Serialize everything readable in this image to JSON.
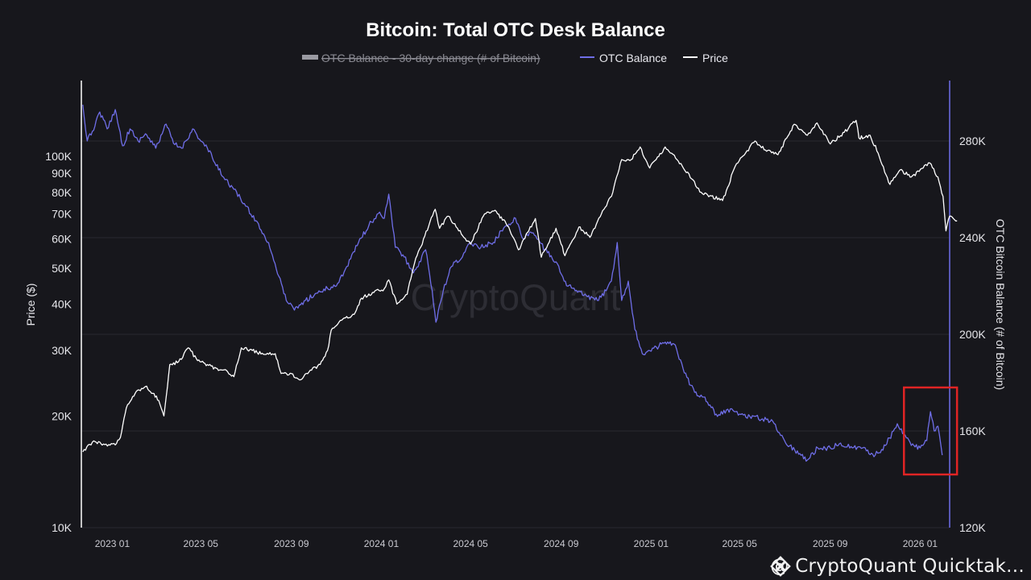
{
  "colors": {
    "background": "#17171c",
    "otc_balance": "#6f6ee8",
    "price": "#ffffff",
    "grid": "#2a2a31",
    "highlight_box": "#e02424",
    "legend_disabled": "#8a8a92"
  },
  "footer": {
    "logo_icon": "binance-square-icon",
    "text": "@ CryptoQuant Quicktak..."
  },
  "chart_data": {
    "type": "line",
    "title": "Bitcoin: Total OTC Desk Balance",
    "watermark": "CryptoQuant",
    "legend": [
      {
        "name": "OTC Balance - 30-day change (# of Bitcoin)",
        "state": "disabled"
      },
      {
        "name": "OTC Balance",
        "state": "enabled"
      },
      {
        "name": "Price",
        "state": "enabled"
      }
    ],
    "legend_position": "top-center",
    "grid": true,
    "x_axis": {
      "type": "date",
      "range": [
        "2022-11-20",
        "2026-02-10"
      ],
      "ticks": [
        "2023 01",
        "2023 05",
        "2023 09",
        "2024 01",
        "2024 05",
        "2024 09",
        "2025 01",
        "2025 05",
        "2025 09",
        "2026 01"
      ]
    },
    "y_left": {
      "label": "Price ($)",
      "scale": "log",
      "range": [
        10000,
        160000
      ],
      "ticks": [
        10000,
        20000,
        30000,
        40000,
        50000,
        60000,
        70000,
        80000,
        90000,
        100000
      ],
      "tick_labels": [
        "10K",
        "20K",
        "30K",
        "40K",
        "50K",
        "60K",
        "70K",
        "80K",
        "90K",
        "100K"
      ]
    },
    "y_right": {
      "label": "OTC Bitcoin Balance (# of Bitcoin)",
      "scale": "linear",
      "range": [
        120000,
        305000
      ],
      "ticks": [
        120000,
        160000,
        200000,
        240000,
        280000
      ],
      "tick_labels": [
        "120K",
        "160K",
        "200K",
        "240K",
        "280K"
      ]
    },
    "annotations": [
      {
        "type": "box",
        "color": "#e02424",
        "x_range": [
          "2025-12-10",
          "2026-02-20"
        ],
        "y_right_range": [
          142000,
          178000
        ]
      }
    ],
    "series": [
      {
        "name": "OTC Balance",
        "axis": "right",
        "points": [
          [
            "2022-11-22",
            295000
          ],
          [
            "2022-11-28",
            280000
          ],
          [
            "2022-12-05",
            284000
          ],
          [
            "2022-12-15",
            292000
          ],
          [
            "2022-12-25",
            285000
          ],
          [
            "2023-01-05",
            293000
          ],
          [
            "2023-01-15",
            278000
          ],
          [
            "2023-01-25",
            285000
          ],
          [
            "2023-02-05",
            280000
          ],
          [
            "2023-02-15",
            283000
          ],
          [
            "2023-03-01",
            277000
          ],
          [
            "2023-03-15",
            287000
          ],
          [
            "2023-03-25",
            279000
          ],
          [
            "2023-04-05",
            277000
          ],
          [
            "2023-04-20",
            285000
          ],
          [
            "2023-05-01",
            280000
          ],
          [
            "2023-05-10",
            277000
          ],
          [
            "2023-05-20",
            271000
          ],
          [
            "2023-06-01",
            265000
          ],
          [
            "2023-06-15",
            260000
          ],
          [
            "2023-07-01",
            253000
          ],
          [
            "2023-07-15",
            247000
          ],
          [
            "2023-08-01",
            238000
          ],
          [
            "2023-08-15",
            224000
          ],
          [
            "2023-08-25",
            214000
          ],
          [
            "2023-09-05",
            210000
          ],
          [
            "2023-09-20",
            214000
          ],
          [
            "2023-10-05",
            217000
          ],
          [
            "2023-10-20",
            219000
          ],
          [
            "2023-11-01",
            220000
          ],
          [
            "2023-11-15",
            228000
          ],
          [
            "2023-12-01",
            238000
          ],
          [
            "2023-12-15",
            245000
          ],
          [
            "2023-12-28",
            250000
          ],
          [
            "2024-01-05",
            248000
          ],
          [
            "2024-01-11",
            258000
          ],
          [
            "2024-01-20",
            236000
          ],
          [
            "2024-02-01",
            232000
          ],
          [
            "2024-02-12",
            226000
          ],
          [
            "2024-02-20",
            228000
          ],
          [
            "2024-03-01",
            235000
          ],
          [
            "2024-03-10",
            218000
          ],
          [
            "2024-03-15",
            205000
          ],
          [
            "2024-03-25",
            218000
          ],
          [
            "2024-04-05",
            228000
          ],
          [
            "2024-04-20",
            232000
          ],
          [
            "2024-05-01",
            238000
          ],
          [
            "2024-05-15",
            236000
          ],
          [
            "2024-06-01",
            238000
          ],
          [
            "2024-06-15",
            244000
          ],
          [
            "2024-07-01",
            248000
          ],
          [
            "2024-07-10",
            240000
          ],
          [
            "2024-07-25",
            242000
          ],
          [
            "2024-08-10",
            235000
          ],
          [
            "2024-08-25",
            230000
          ],
          [
            "2024-09-05",
            222000
          ],
          [
            "2024-09-20",
            218000
          ],
          [
            "2024-10-05",
            216000
          ],
          [
            "2024-10-20",
            214000
          ],
          [
            "2024-11-01",
            218000
          ],
          [
            "2024-11-08",
            222000
          ],
          [
            "2024-11-16",
            238000
          ],
          [
            "2024-11-22",
            214000
          ],
          [
            "2024-12-01",
            222000
          ],
          [
            "2024-12-10",
            202000
          ],
          [
            "2024-12-20",
            192000
          ],
          [
            "2025-01-01",
            193000
          ],
          [
            "2025-01-15",
            196000
          ],
          [
            "2025-02-01",
            196000
          ],
          [
            "2025-02-15",
            184000
          ],
          [
            "2025-03-01",
            176000
          ],
          [
            "2025-03-15",
            174000
          ],
          [
            "2025-04-01",
            166000
          ],
          [
            "2025-04-15",
            169000
          ],
          [
            "2025-05-01",
            167000
          ],
          [
            "2025-05-15",
            166000
          ],
          [
            "2025-06-01",
            165000
          ],
          [
            "2025-06-15",
            164000
          ],
          [
            "2025-07-01",
            156000
          ],
          [
            "2025-07-15",
            152000
          ],
          [
            "2025-08-01",
            148000
          ],
          [
            "2025-08-15",
            153000
          ],
          [
            "2025-09-01",
            153000
          ],
          [
            "2025-09-15",
            155000
          ],
          [
            "2025-10-01",
            153000
          ],
          [
            "2025-10-15",
            153000
          ],
          [
            "2025-11-01",
            150000
          ],
          [
            "2025-11-15",
            154000
          ],
          [
            "2025-12-01",
            163000
          ],
          [
            "2025-12-10",
            159000
          ],
          [
            "2025-12-20",
            154000
          ],
          [
            "2026-01-01",
            153000
          ],
          [
            "2026-01-10",
            156000
          ],
          [
            "2026-01-15",
            168000
          ],
          [
            "2026-01-20",
            160000
          ],
          [
            "2026-01-25",
            162000
          ],
          [
            "2026-01-31",
            150000
          ]
        ]
      },
      {
        "name": "Price",
        "axis": "left",
        "points": [
          [
            "2022-11-22",
            16000
          ],
          [
            "2022-12-05",
            17000
          ],
          [
            "2022-12-20",
            16800
          ],
          [
            "2023-01-05",
            16700
          ],
          [
            "2023-01-12",
            17500
          ],
          [
            "2023-01-20",
            21000
          ],
          [
            "2023-02-01",
            23000
          ],
          [
            "2023-02-15",
            24000
          ],
          [
            "2023-02-25",
            23000
          ],
          [
            "2023-03-05",
            22000
          ],
          [
            "2023-03-12",
            20000
          ],
          [
            "2023-03-20",
            27500
          ],
          [
            "2023-04-01",
            28000
          ],
          [
            "2023-04-14",
            30500
          ],
          [
            "2023-04-25",
            28500
          ],
          [
            "2023-05-10",
            27500
          ],
          [
            "2023-05-25",
            26500
          ],
          [
            "2023-06-05",
            26500
          ],
          [
            "2023-06-15",
            25500
          ],
          [
            "2023-06-25",
            30500
          ],
          [
            "2023-07-10",
            30000
          ],
          [
            "2023-07-25",
            29300
          ],
          [
            "2023-08-10",
            29400
          ],
          [
            "2023-08-18",
            26000
          ],
          [
            "2023-09-01",
            26000
          ],
          [
            "2023-09-12",
            25000
          ],
          [
            "2023-09-25",
            26300
          ],
          [
            "2023-10-10",
            27500
          ],
          [
            "2023-10-20",
            30000
          ],
          [
            "2023-10-25",
            34000
          ],
          [
            "2023-11-10",
            36500
          ],
          [
            "2023-11-25",
            37500
          ],
          [
            "2023-12-05",
            41500
          ],
          [
            "2023-12-20",
            43000
          ],
          [
            "2024-01-05",
            44000
          ],
          [
            "2024-01-11",
            46500
          ],
          [
            "2024-01-22",
            40000
          ],
          [
            "2024-02-05",
            42500
          ],
          [
            "2024-02-15",
            51500
          ],
          [
            "2024-02-29",
            61000
          ],
          [
            "2024-03-14",
            72000
          ],
          [
            "2024-03-20",
            64000
          ],
          [
            "2024-04-01",
            69000
          ],
          [
            "2024-04-15",
            63000
          ],
          [
            "2024-05-01",
            58000
          ],
          [
            "2024-05-20",
            70000
          ],
          [
            "2024-06-05",
            71000
          ],
          [
            "2024-06-20",
            65000
          ],
          [
            "2024-07-05",
            56000
          ],
          [
            "2024-07-28",
            68000
          ],
          [
            "2024-08-05",
            53500
          ],
          [
            "2024-08-25",
            64000
          ],
          [
            "2024-09-06",
            54000
          ],
          [
            "2024-09-25",
            64500
          ],
          [
            "2024-10-10",
            60500
          ],
          [
            "2024-10-29",
            72000
          ],
          [
            "2024-11-10",
            80000
          ],
          [
            "2024-11-22",
            98000
          ],
          [
            "2024-12-05",
            98000
          ],
          [
            "2024-12-17",
            106000
          ],
          [
            "2024-12-30",
            93000
          ],
          [
            "2025-01-20",
            106000
          ],
          [
            "2025-02-05",
            98000
          ],
          [
            "2025-02-25",
            87000
          ],
          [
            "2025-03-10",
            80000
          ],
          [
            "2025-04-08",
            76000
          ],
          [
            "2025-04-25",
            94000
          ],
          [
            "2025-05-22",
            110000
          ],
          [
            "2025-06-05",
            104000
          ],
          [
            "2025-06-22",
            101000
          ],
          [
            "2025-07-14",
            122000
          ],
          [
            "2025-08-01",
            114000
          ],
          [
            "2025-08-14",
            123000
          ],
          [
            "2025-09-01",
            108000
          ],
          [
            "2025-09-20",
            116000
          ],
          [
            "2025-10-06",
            125000
          ],
          [
            "2025-10-10",
            112000
          ],
          [
            "2025-10-25",
            114000
          ],
          [
            "2025-11-05",
            102000
          ],
          [
            "2025-11-21",
            84000
          ],
          [
            "2025-12-05",
            92000
          ],
          [
            "2025-12-20",
            88000
          ],
          [
            "2026-01-05",
            93000
          ],
          [
            "2026-01-14",
            96000
          ],
          [
            "2026-01-25",
            88000
          ],
          [
            "2026-02-01",
            78000
          ],
          [
            "2026-02-05",
            63000
          ],
          [
            "2026-02-10",
            69000
          ],
          [
            "2026-02-20",
            67000
          ]
        ]
      }
    ]
  }
}
